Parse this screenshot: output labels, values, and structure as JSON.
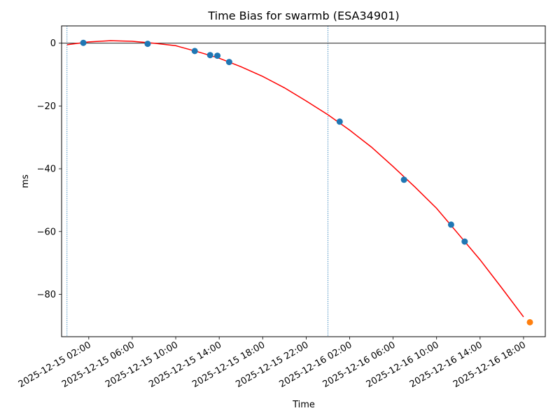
{
  "chart_data": {
    "type": "scatter",
    "title": "Time Bias for swarmb (ESA34901)",
    "xlabel": "Time",
    "ylabel": "ms",
    "x_axis": "datetime",
    "xlim": [
      "2025-12-14T23:30",
      "2025-12-16T20:00"
    ],
    "ylim": [
      -93.5,
      5.5
    ],
    "x_ticks": [
      {
        "value": "2025-12-15T02:00",
        "label": "2025-12-15 02:00"
      },
      {
        "value": "2025-12-15T06:00",
        "label": "2025-12-15 06:00"
      },
      {
        "value": "2025-12-15T10:00",
        "label": "2025-12-15 10:00"
      },
      {
        "value": "2025-12-15T14:00",
        "label": "2025-12-15 14:00"
      },
      {
        "value": "2025-12-15T18:00",
        "label": "2025-12-15 18:00"
      },
      {
        "value": "2025-12-15T22:00",
        "label": "2025-12-15 22:00"
      },
      {
        "value": "2025-12-16T02:00",
        "label": "2025-12-16 02:00"
      },
      {
        "value": "2025-12-16T06:00",
        "label": "2025-12-16 06:00"
      },
      {
        "value": "2025-12-16T10:00",
        "label": "2025-12-16 10:00"
      },
      {
        "value": "2025-12-16T14:00",
        "label": "2025-12-16 14:00"
      },
      {
        "value": "2025-12-16T18:00",
        "label": "2025-12-16 18:00"
      }
    ],
    "y_ticks": [
      {
        "value": 0,
        "label": "0"
      },
      {
        "value": -20,
        "label": "−20"
      },
      {
        "value": -40,
        "label": "−40"
      },
      {
        "value": -60,
        "label": "−60"
      },
      {
        "value": -80,
        "label": "−80"
      }
    ],
    "grid": false,
    "reference_lines": {
      "horizontal_at_y": 0,
      "vertical_at_x": [
        "2025-12-15T00:00",
        "2025-12-16T00:00"
      ]
    },
    "series": [
      {
        "color": "#1f77b4",
        "points": [
          {
            "x": "2025-12-15T01:30",
            "y": 0.1
          },
          {
            "x": "2025-12-15T07:25",
            "y": -0.2
          },
          {
            "x": "2025-12-15T11:45",
            "y": -2.5
          },
          {
            "x": "2025-12-15T13:10",
            "y": -3.8
          },
          {
            "x": "2025-12-15T13:50",
            "y": -4.0
          },
          {
            "x": "2025-12-15T14:55",
            "y": -6.0
          },
          {
            "x": "2025-12-16T01:05",
            "y": -25.0
          },
          {
            "x": "2025-12-16T07:00",
            "y": -43.5
          },
          {
            "x": "2025-12-16T11:20",
            "y": -57.8
          },
          {
            "x": "2025-12-16T12:35",
            "y": -63.2
          }
        ]
      },
      {
        "color": "#ff7f0e",
        "points": [
          {
            "x": "2025-12-16T18:35",
            "y": -88.9
          }
        ]
      }
    ],
    "fit_curve": {
      "type": "line",
      "color": "#ff0000",
      "points": [
        {
          "x": "2025-12-15T00:00",
          "y": -0.5
        },
        {
          "x": "2025-12-15T02:00",
          "y": 0.4
        },
        {
          "x": "2025-12-15T04:00",
          "y": 0.8
        },
        {
          "x": "2025-12-15T06:00",
          "y": 0.6
        },
        {
          "x": "2025-12-15T08:00",
          "y": 0.0
        },
        {
          "x": "2025-12-15T10:00",
          "y": -0.8
        },
        {
          "x": "2025-12-15T12:00",
          "y": -2.7
        },
        {
          "x": "2025-12-15T14:00",
          "y": -4.8
        },
        {
          "x": "2025-12-15T16:00",
          "y": -7.5
        },
        {
          "x": "2025-12-15T18:00",
          "y": -10.6
        },
        {
          "x": "2025-12-15T20:00",
          "y": -14.2
        },
        {
          "x": "2025-12-15T22:00",
          "y": -18.4
        },
        {
          "x": "2025-12-16T00:00",
          "y": -22.8
        },
        {
          "x": "2025-12-16T02:00",
          "y": -27.7
        },
        {
          "x": "2025-12-16T04:00",
          "y": -33.1
        },
        {
          "x": "2025-12-16T06:00",
          "y": -39.3
        },
        {
          "x": "2025-12-16T08:00",
          "y": -45.8
        },
        {
          "x": "2025-12-16T10:00",
          "y": -52.6
        },
        {
          "x": "2025-12-16T12:00",
          "y": -60.8
        },
        {
          "x": "2025-12-16T14:00",
          "y": -69.0
        },
        {
          "x": "2025-12-16T16:00",
          "y": -78.0
        },
        {
          "x": "2025-12-16T18:00",
          "y": -87.2
        }
      ]
    }
  }
}
